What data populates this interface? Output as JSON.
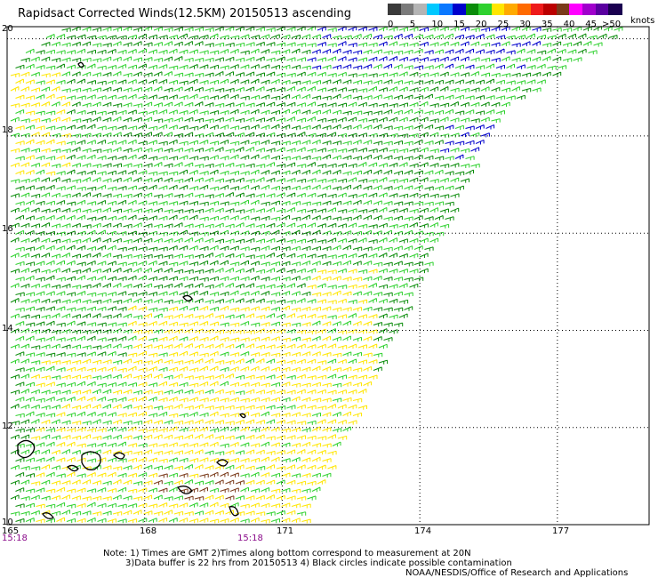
{
  "title": "Rapidsact Corrected Winds(12.5KM) 20150513 ascending",
  "legend": {
    "colors": [
      "#3a3a3a",
      "#7a7a7a",
      "#b4b4b4",
      "#00c8ff",
      "#0a78ff",
      "#0000cc",
      "#0a8c0a",
      "#2ed12e",
      "#ffe600",
      "#ffaa00",
      "#ff6a00",
      "#ee1a1a",
      "#bb0000",
      "#7a3a1a",
      "#ff00ff",
      "#a000cc",
      "#5a00a0",
      "#1a0050"
    ],
    "ticks": [
      "0",
      "5",
      "10",
      "15",
      "20",
      "25",
      "30",
      "35",
      "40",
      "45",
      ">50"
    ],
    "units": "knots"
  },
  "map": {
    "lon_ticks": [
      "165",
      "168",
      "171",
      "174",
      "177"
    ],
    "lat_ticks": [
      "20",
      "18",
      "16",
      "14",
      "12",
      "10"
    ],
    "times": [
      "15:18",
      "15:18"
    ],
    "lon_range": [
      165,
      178.5
    ],
    "lat_range": [
      10,
      20.3
    ],
    "contours": "black circles over islands"
  },
  "notes": {
    "line1": "Note: 1) Times are GMT 2)Times along bottom correspond to measurement at 20N",
    "line2": "3)Data buffer is 22 hrs from 20150513 4) Black circles indicate possible contamination",
    "line3": "NOAA/NESDIS/Office of Research and Applications"
  },
  "colors": {
    "grid": "#000000",
    "time_label": "#8a0a8a",
    "dark_green": "#0a8c0a",
    "light_green": "#2ed12e",
    "yellow": "#ffe600",
    "blue": "#0000cc",
    "brown": "#7a3a1a",
    "red": "#ee1a1a"
  }
}
